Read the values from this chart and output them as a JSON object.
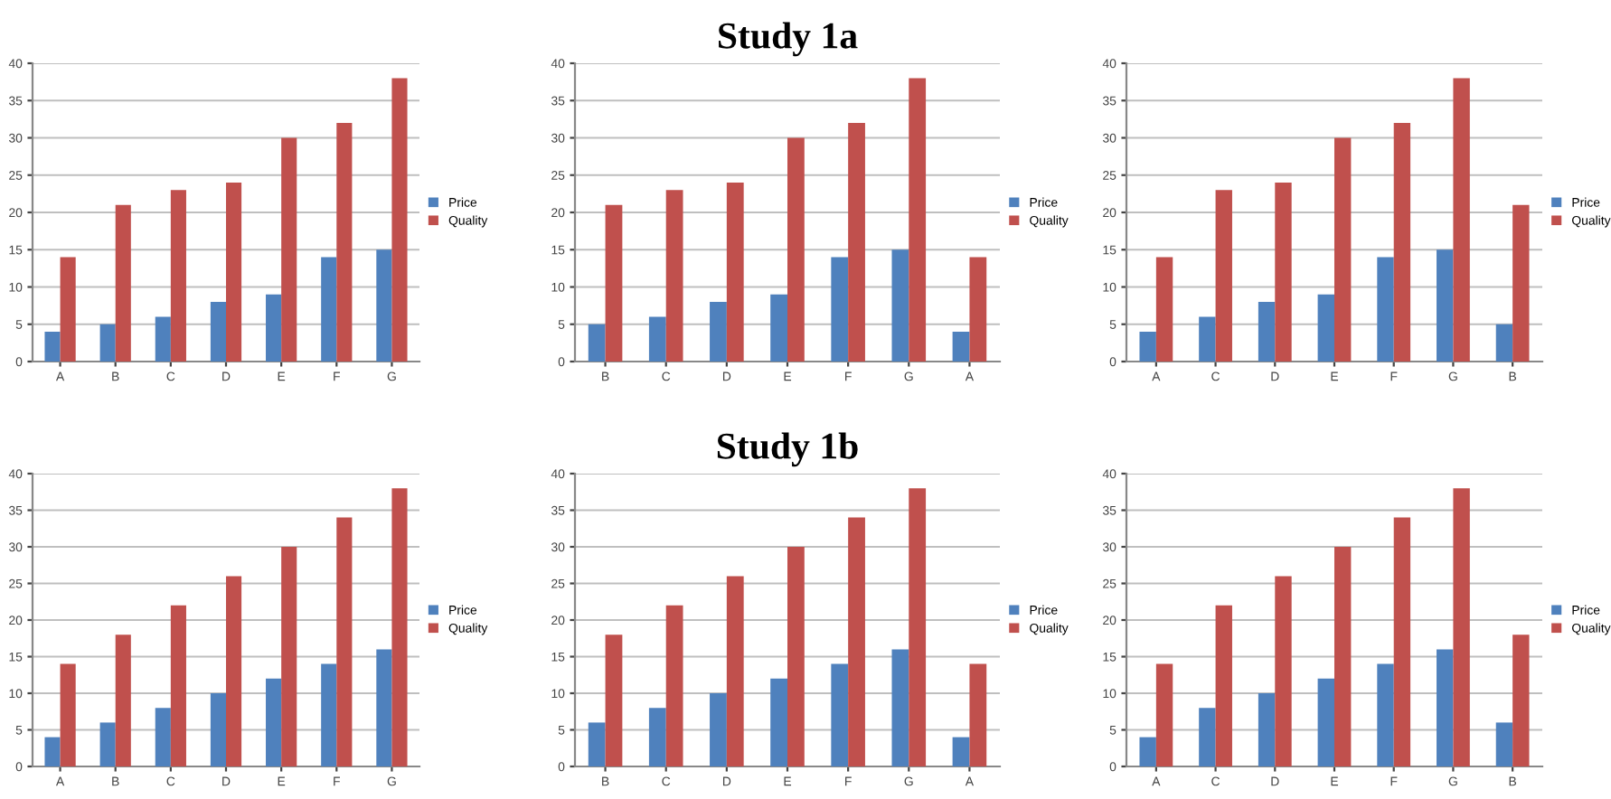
{
  "chart_data": [
    {
      "type": "bar",
      "categories": [
        "A",
        "B",
        "C",
        "D",
        "E",
        "F",
        "G"
      ],
      "ylim": [
        0,
        40
      ],
      "yticks": [
        0,
        5,
        10,
        15,
        20,
        25,
        30,
        35,
        40
      ],
      "grid": "y",
      "legend": "right",
      "series": [
        {
          "name": "Price",
          "color": "#4f81bd",
          "values": [
            4,
            5,
            6,
            8,
            9,
            14,
            15
          ]
        },
        {
          "name": "Quality",
          "color": "#c0504d",
          "values": [
            14,
            21,
            23,
            24,
            30,
            32,
            38
          ]
        }
      ]
    },
    {
      "type": "bar",
      "title": "Study 1a",
      "categories": [
        "B",
        "C",
        "D",
        "E",
        "F",
        "G",
        "A"
      ],
      "ylim": [
        0,
        40
      ],
      "yticks": [
        0,
        5,
        10,
        15,
        20,
        25,
        30,
        35,
        40
      ],
      "grid": "y",
      "legend": "right",
      "series": [
        {
          "name": "Price",
          "color": "#4f81bd",
          "values": [
            5,
            6,
            8,
            9,
            14,
            15,
            4
          ]
        },
        {
          "name": "Quality",
          "color": "#c0504d",
          "values": [
            21,
            23,
            24,
            30,
            32,
            38,
            14
          ]
        }
      ]
    },
    {
      "type": "bar",
      "categories": [
        "A",
        "C",
        "D",
        "E",
        "F",
        "G",
        "B"
      ],
      "ylim": [
        0,
        40
      ],
      "yticks": [
        0,
        5,
        10,
        15,
        20,
        25,
        30,
        35,
        40
      ],
      "grid": "y",
      "legend": "right",
      "series": [
        {
          "name": "Price",
          "color": "#4f81bd",
          "values": [
            4,
            6,
            8,
            9,
            14,
            15,
            5
          ]
        },
        {
          "name": "Quality",
          "color": "#c0504d",
          "values": [
            14,
            23,
            24,
            30,
            32,
            38,
            21
          ]
        }
      ]
    },
    {
      "type": "bar",
      "categories": [
        "A",
        "B",
        "C",
        "D",
        "E",
        "F",
        "G"
      ],
      "ylim": [
        0,
        40
      ],
      "yticks": [
        0,
        5,
        10,
        15,
        20,
        25,
        30,
        35,
        40
      ],
      "grid": "y",
      "legend": "right",
      "series": [
        {
          "name": "Price",
          "color": "#4f81bd",
          "values": [
            4,
            6,
            8,
            10,
            12,
            14,
            16
          ]
        },
        {
          "name": "Quality",
          "color": "#c0504d",
          "values": [
            14,
            18,
            22,
            26,
            30,
            34,
            38
          ]
        }
      ]
    },
    {
      "type": "bar",
      "title": "Study 1b",
      "categories": [
        "B",
        "C",
        "D",
        "E",
        "F",
        "G",
        "A"
      ],
      "ylim": [
        0,
        40
      ],
      "yticks": [
        0,
        5,
        10,
        15,
        20,
        25,
        30,
        35,
        40
      ],
      "grid": "y",
      "legend": "right",
      "series": [
        {
          "name": "Price",
          "color": "#4f81bd",
          "values": [
            6,
            8,
            10,
            12,
            14,
            16,
            4
          ]
        },
        {
          "name": "Quality",
          "color": "#c0504d",
          "values": [
            18,
            22,
            26,
            30,
            34,
            38,
            14
          ]
        }
      ]
    },
    {
      "type": "bar",
      "categories": [
        "A",
        "C",
        "D",
        "E",
        "F",
        "G",
        "B"
      ],
      "ylim": [
        0,
        40
      ],
      "yticks": [
        0,
        5,
        10,
        15,
        20,
        25,
        30,
        35,
        40
      ],
      "grid": "y",
      "legend": "right",
      "series": [
        {
          "name": "Price",
          "color": "#4f81bd",
          "values": [
            4,
            8,
            10,
            12,
            14,
            16,
            6
          ]
        },
        {
          "name": "Quality",
          "color": "#c0504d",
          "values": [
            14,
            22,
            26,
            30,
            34,
            38,
            18
          ]
        }
      ]
    }
  ]
}
